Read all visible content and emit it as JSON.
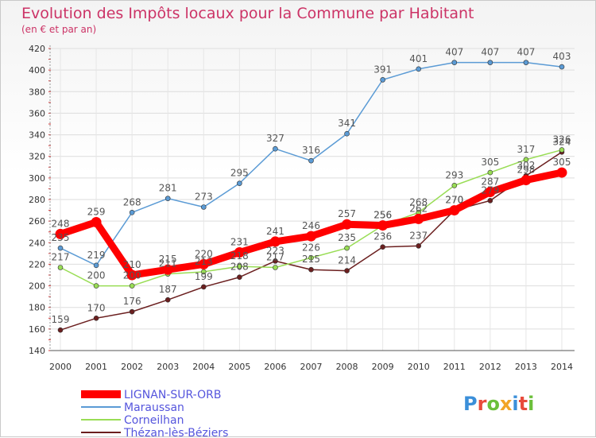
{
  "title": "Evolution des Impôts locaux pour la Commune par Habitant",
  "subtitle": "(en € et par an)",
  "brand": "Proxiti",
  "brand_colors": [
    "#3b8fd9",
    "#e84b3c",
    "#6bbf3a",
    "#f2a427",
    "#3b8fd9",
    "#e84b3c",
    "#6bbf3a"
  ],
  "chart_data": {
    "type": "line",
    "title": "Evolution des Impôts locaux pour la Commune par Habitant",
    "subtitle": "(en € et par an)",
    "xlabel": "",
    "ylabel": "",
    "x": [
      "2000",
      "2001",
      "2002",
      "2003",
      "2004",
      "2005",
      "2006",
      "2007",
      "2008",
      "2009",
      "2010",
      "2011",
      "2012",
      "2013",
      "2014"
    ],
    "ylim": [
      140,
      420
    ],
    "yticks": [
      140,
      160,
      180,
      200,
      220,
      240,
      260,
      280,
      300,
      320,
      340,
      360,
      380,
      400,
      420
    ],
    "grid": true,
    "legend_position": "bottom-left",
    "series": [
      {
        "name": "Thézan-lès-Béziers",
        "color": "#6b1f1f",
        "values": [
          159,
          170,
          176,
          187,
          199,
          208,
          223,
          215,
          214,
          236,
          237,
          270,
          279,
          302,
          324
        ]
      },
      {
        "name": "Corneilhan",
        "color": "#99dd55",
        "values": [
          217,
          200,
          200,
          211,
          213,
          218,
          217,
          226,
          235,
          256,
          268,
          293,
          305,
          317,
          326
        ]
      },
      {
        "name": "Maraussan",
        "color": "#5b9bd5",
        "values": [
          235,
          219,
          268,
          281,
          273,
          295,
          327,
          316,
          341,
          391,
          401,
          407,
          407,
          407,
          403
        ]
      },
      {
        "name": "LIGNAN-SUR-ORB",
        "color": "#ff0000",
        "values": [
          248,
          259,
          210,
          215,
          220,
          231,
          241,
          246,
          257,
          256,
          262,
          270,
          287,
          298,
          305
        ]
      }
    ],
    "legend": [
      {
        "name": "LIGNAN-SUR-ORB",
        "color": "#ff0000"
      },
      {
        "name": "Maraussan",
        "color": "#5b9bd5"
      },
      {
        "name": "Corneilhan",
        "color": "#99dd55"
      },
      {
        "name": "Thézan-lès-Béziers",
        "color": "#6b1f1f"
      }
    ]
  }
}
